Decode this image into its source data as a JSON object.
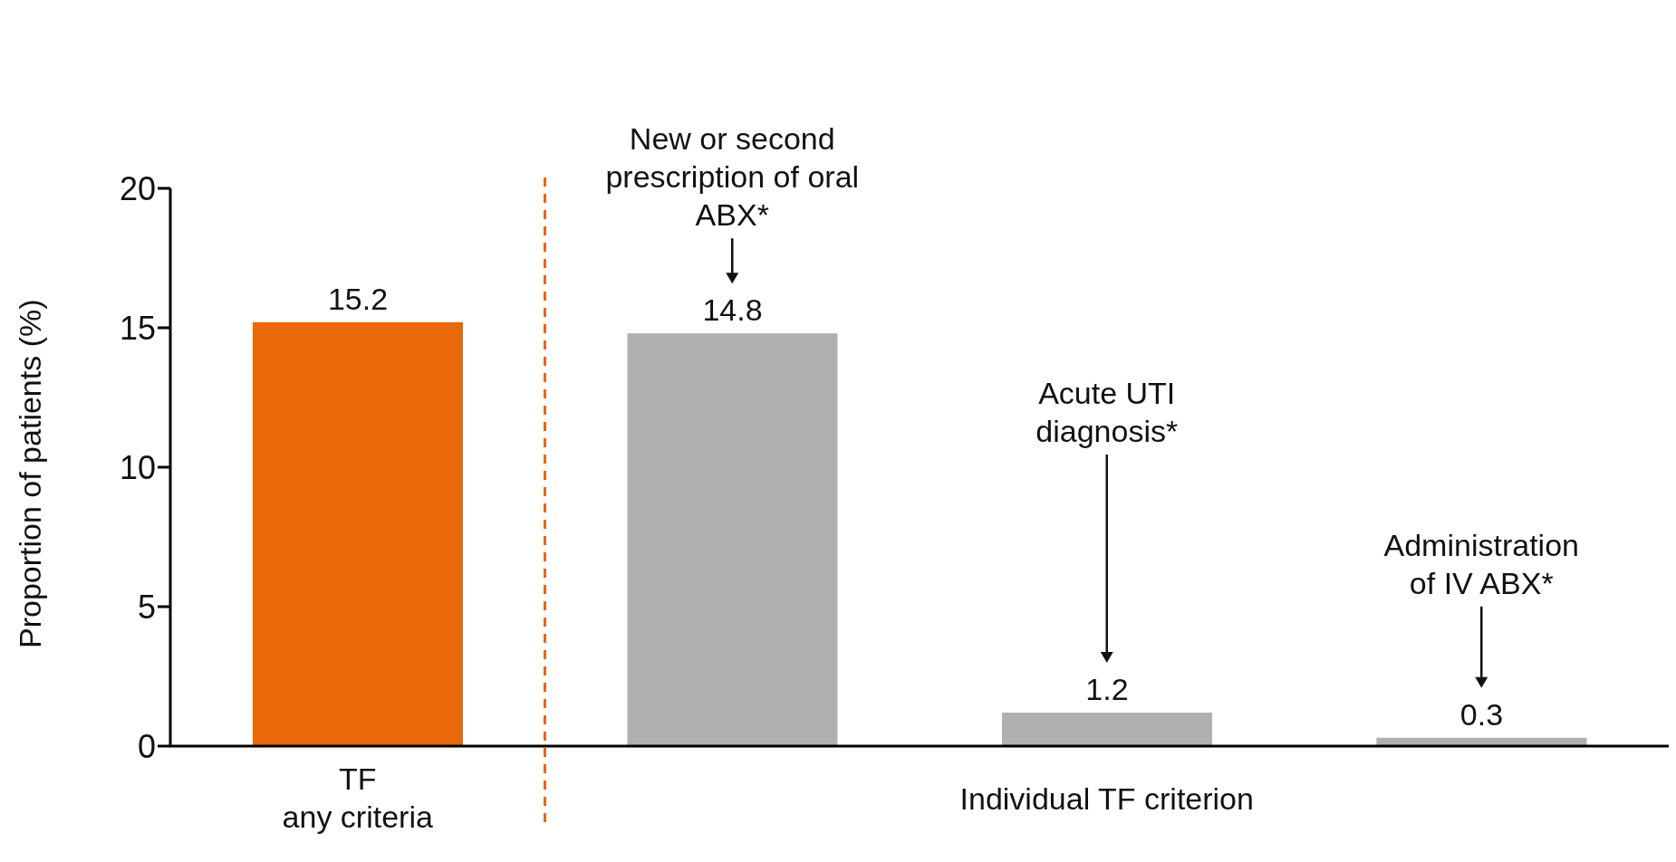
{
  "chart_data": {
    "type": "bar",
    "categories": [
      "TF any criteria",
      "New or second prescription of oral ABX*",
      "Acute UTI diagnosis*",
      "Administration of IV ABX*"
    ],
    "values": [
      15.2,
      14.8,
      1.2,
      0.3
    ],
    "colors": [
      "#e8680a",
      "#b0b0b0",
      "#b0b0b0",
      "#b0b0b0"
    ],
    "ylabel": "Proportion of patients (%)",
    "ylim": [
      0,
      20
    ],
    "yticks": [
      0,
      5,
      10,
      15,
      20
    ],
    "data_labels": true,
    "grid": false,
    "legend": false,
    "annotations": [
      "Individual TF criterion"
    ]
  }
}
